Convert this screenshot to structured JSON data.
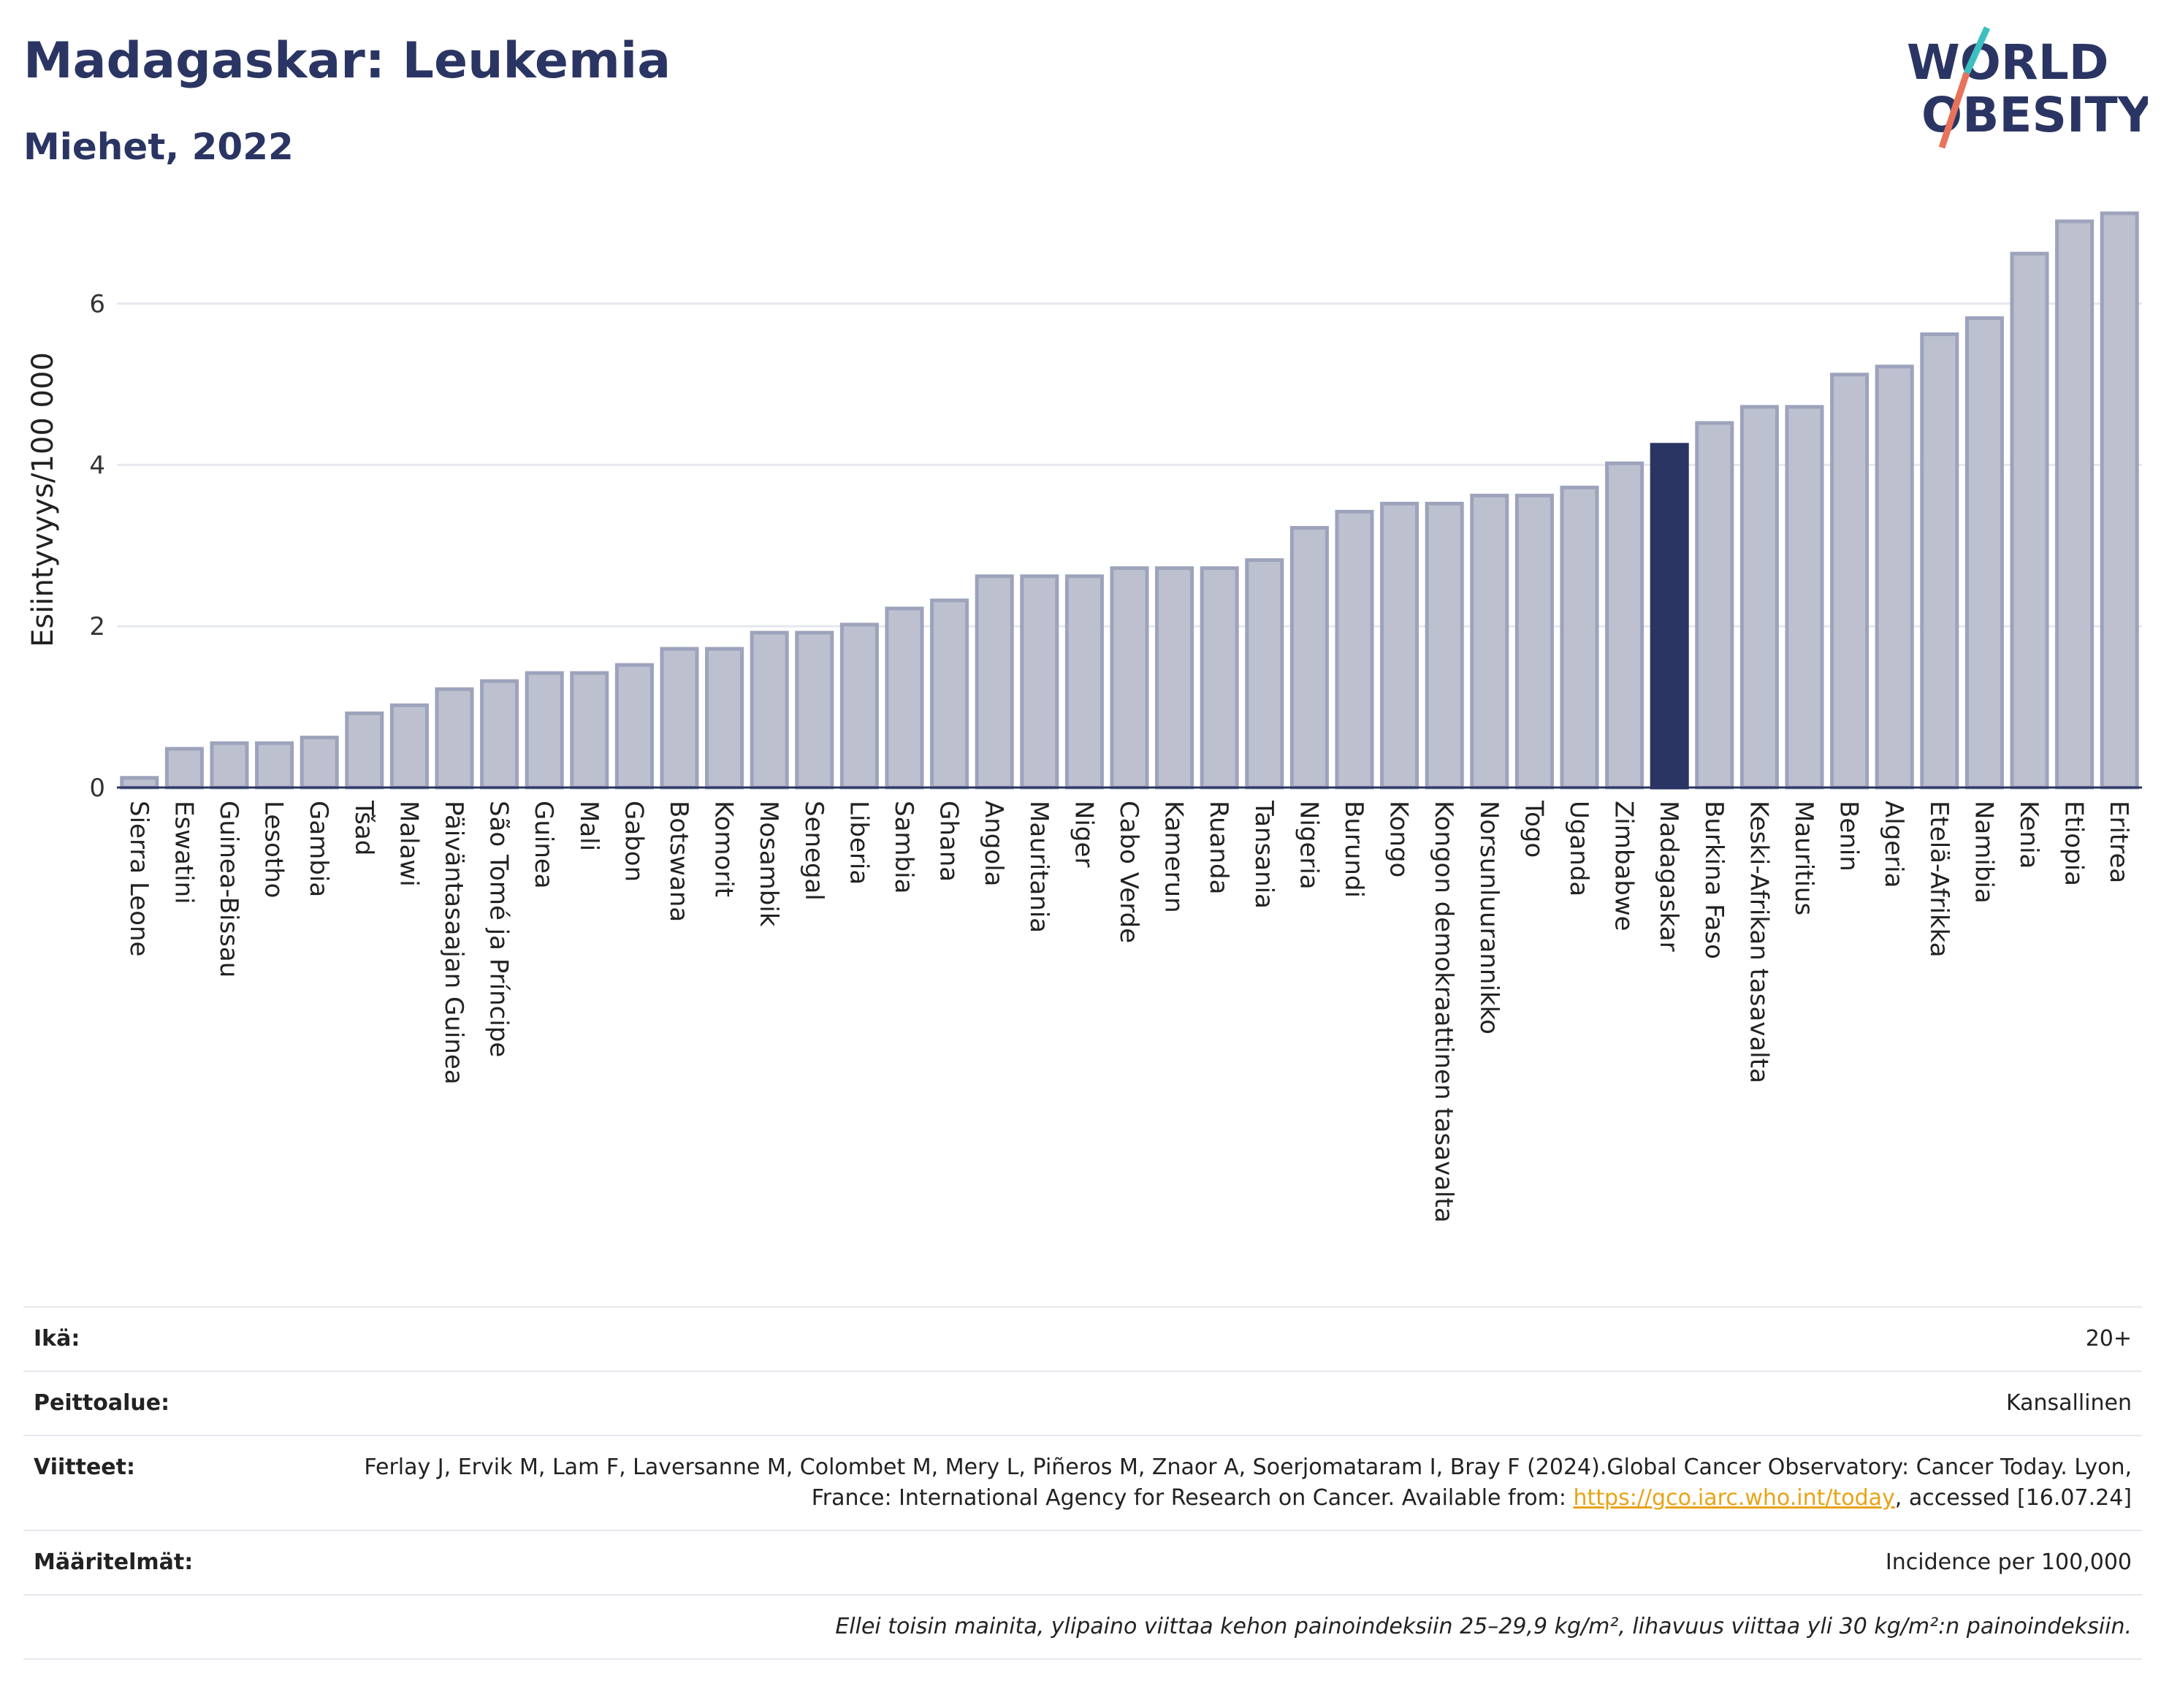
{
  "header": {
    "title": "Madagaskar: Leukemia",
    "subtitle": "Miehet, 2022"
  },
  "logo": {
    "line1": "WORLD",
    "line2": "OBESITY",
    "text_color": "#2b3563",
    "slash_colors": [
      "#3dbfbf",
      "#e8725a"
    ]
  },
  "chart_data": {
    "type": "bar",
    "ylabel": "Esiintyvyys/100 000",
    "xlabel": "",
    "ylim": [
      0,
      7.5
    ],
    "yticks": [
      0,
      2,
      4,
      6
    ],
    "grid": true,
    "highlight": "Madagaskar",
    "colors": {
      "bar_fill": "#bdc1cf",
      "bar_stroke": "#9da3bb",
      "highlight_fill": "#2b3563",
      "grid": "#e6e8ee",
      "axis": "#2b3563"
    },
    "categories": [
      "Sierra Leone",
      "Eswatini",
      "Guinea-Bissau",
      "Lesotho",
      "Gambia",
      "Tšad",
      "Malawi",
      "Päiväntasaajan Guinea",
      "São Tomé ja Príncipe",
      "Guinea",
      "Mali",
      "Gabon",
      "Botswana",
      "Komorit",
      "Mosambik",
      "Senegal",
      "Liberia",
      "Sambia",
      "Ghana",
      "Angola",
      "Mauritania",
      "Niger",
      "Cabo Verde",
      "Kamerun",
      "Ruanda",
      "Tansania",
      "Nigeria",
      "Burundi",
      "Kongo",
      "Kongon demokraattinen tasavalta",
      "Norsunluurannikko",
      "Togo",
      "Uganda",
      "Zimbabwe",
      "Madagaskar",
      "Burkina Faso",
      "Keski-Afrikan tasavalta",
      "Mauritius",
      "Benin",
      "Algeria",
      "Etelä-Afrikka",
      "Namibia",
      "Kenia",
      "Etiopia",
      "Eritrea"
    ],
    "values": [
      0.12,
      0.48,
      0.55,
      0.55,
      0.62,
      0.92,
      1.02,
      1.22,
      1.32,
      1.42,
      1.42,
      1.52,
      1.72,
      1.72,
      1.92,
      1.92,
      2.02,
      2.22,
      2.32,
      2.62,
      2.62,
      2.62,
      2.72,
      2.72,
      2.72,
      2.82,
      3.22,
      3.42,
      3.52,
      3.52,
      3.62,
      3.62,
      3.72,
      4.02,
      4.25,
      4.52,
      4.72,
      4.72,
      5.12,
      5.22,
      5.62,
      5.82,
      6.62,
      7.02,
      7.12
    ]
  },
  "info": {
    "rows": [
      {
        "label": "Ikä:",
        "value": "20+"
      },
      {
        "label": "Peittoalue:",
        "value": "Kansallinen"
      },
      {
        "label": "Viitteet:",
        "value": "Ferlay J, Ervik M, Lam F, Laversanne M, Colombet M, Mery L, Piñeros M, Znaor A, Soerjomataram I, Bray F (2024).Global Cancer Observatory: Cancer Today. Lyon, France: International Agency for Research on Cancer. Available from:",
        "link": "https://gco.iarc.who.int/today",
        "suffix": ", accessed [16.07.24]"
      },
      {
        "label": "Määritelmät:",
        "value": "Incidence per 100,000"
      }
    ],
    "note": "Ellei toisin mainita, ylipaino viittaa kehon painoindeksiin 25–29,9 kg/m², lihavuus viittaa yli 30 kg/m²:n painoindeksiin."
  }
}
